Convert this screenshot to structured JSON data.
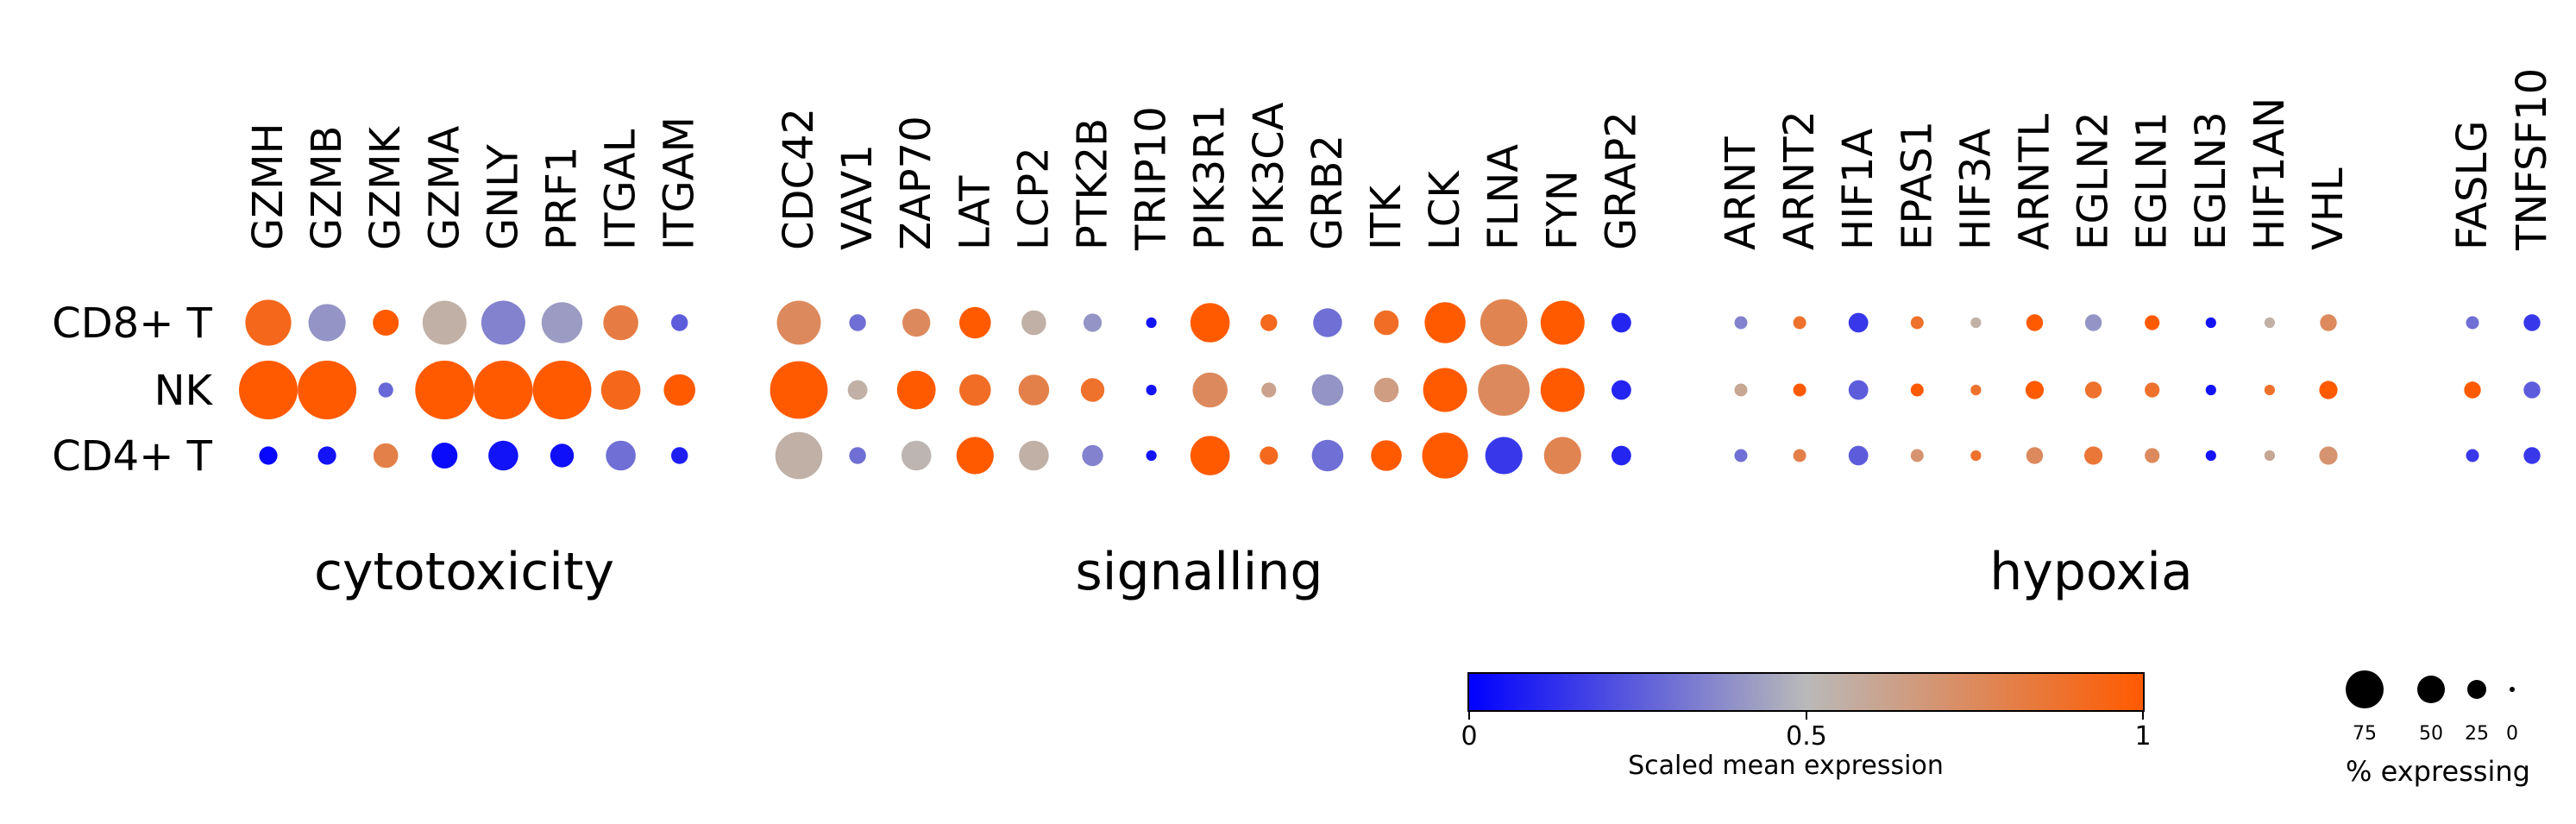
{
  "chart_data": {
    "type": "dotplot",
    "rows": [
      "CD8+ T",
      "NK",
      "CD4+ T"
    ],
    "groups": [
      {
        "label": "cytotoxicity",
        "genes": [
          {
            "name": "GZMH",
            "expr": [
              0.93,
              1.0,
              0.02
            ],
            "pct": [
              38,
              62,
              6
            ]
          },
          {
            "name": "GZMB",
            "expr": [
              0.4,
              1.0,
              0.05
            ],
            "pct": [
              25,
              62,
              6
            ]
          },
          {
            "name": "GZMK",
            "expr": [
              1.0,
              0.28,
              0.8
            ],
            "pct": [
              12,
              4,
              11
            ]
          },
          {
            "name": "GZMA",
            "expr": [
              0.55,
              1.0,
              0.03
            ],
            "pct": [
              35,
              62,
              12
            ]
          },
          {
            "name": "GNLY",
            "expr": [
              0.35,
              1.0,
              0.05
            ],
            "pct": [
              35,
              62,
              16
            ]
          },
          {
            "name": "PRF1",
            "expr": [
              0.42,
              1.0,
              0.04
            ],
            "pct": [
              30,
              62,
              10
            ]
          },
          {
            "name": "ITGAL",
            "expr": [
              0.82,
              0.93,
              0.3
            ],
            "pct": [
              22,
              28,
              16
            ]
          },
          {
            "name": "ITGAM",
            "expr": [
              0.25,
              1.0,
              0.08
            ],
            "pct": [
              5,
              18,
              5
            ]
          }
        ]
      },
      {
        "label": "signalling",
        "genes": [
          {
            "name": "CDC42",
            "expr": [
              0.75,
              1.0,
              0.55
            ],
            "pct": [
              35,
              60,
              40
            ]
          },
          {
            "name": "VAV1",
            "expr": [
              0.3,
              0.55,
              0.3
            ],
            "pct": [
              5,
              7,
              5
            ]
          },
          {
            "name": "ZAP70",
            "expr": [
              0.75,
              1.0,
              0.52
            ],
            "pct": [
              14,
              27,
              16
            ]
          },
          {
            "name": "LAT",
            "expr": [
              1.0,
              0.9,
              1.0
            ],
            "pct": [
              18,
              18,
              25
            ]
          },
          {
            "name": "LCP2",
            "expr": [
              0.55,
              0.8,
              0.55
            ],
            "pct": [
              11,
              17,
              16
            ]
          },
          {
            "name": "PTK2B",
            "expr": [
              0.4,
              0.88,
              0.35
            ],
            "pct": [
              6,
              10,
              8
            ]
          },
          {
            "name": "TRIP10",
            "expr": [
              0.05,
              0.05,
              0.05
            ],
            "pct": [
              2,
              2,
              2
            ]
          },
          {
            "name": "PIK3R1",
            "expr": [
              1.0,
              0.75,
              1.0
            ],
            "pct": [
              28,
              22,
              28
            ]
          },
          {
            "name": "PIK3CA",
            "expr": [
              0.92,
              0.62,
              0.92
            ],
            "pct": [
              5,
              4,
              6
            ]
          },
          {
            "name": "GRB2",
            "expr": [
              0.3,
              0.4,
              0.3
            ],
            "pct": [
              15,
              18,
              18
            ]
          },
          {
            "name": "ITK",
            "expr": [
              0.9,
              0.65,
              1.0
            ],
            "pct": [
              11,
              11,
              17
            ]
          },
          {
            "name": "LCK",
            "expr": [
              1.0,
              1.0,
              1.0
            ],
            "pct": [
              30,
              35,
              38
            ]
          },
          {
            "name": "FLNA",
            "expr": [
              0.78,
              0.75,
              0.15
            ],
            "pct": [
              40,
              48,
              25
            ]
          },
          {
            "name": "FYN",
            "expr": [
              1.0,
              1.0,
              0.78
            ],
            "pct": [
              35,
              35,
              25
            ]
          },
          {
            "name": "GRAP2",
            "expr": [
              0.1,
              0.1,
              0.1
            ],
            "pct": [
              7,
              7,
              7
            ]
          }
        ]
      },
      {
        "label": "hypoxia",
        "genes": [
          {
            "name": "ARNT",
            "expr": [
              0.35,
              0.6,
              0.3
            ],
            "pct": [
              3,
              3,
              3
            ]
          },
          {
            "name": "ARNT2",
            "expr": [
              0.88,
              1.0,
              0.8
            ],
            "pct": [
              3,
              3,
              3
            ]
          },
          {
            "name": "HIF1A",
            "expr": [
              0.15,
              0.25,
              0.25
            ],
            "pct": [
              7,
              7,
              7
            ]
          },
          {
            "name": "EPAS1",
            "expr": [
              0.88,
              1.0,
              0.7
            ],
            "pct": [
              3,
              3,
              3
            ]
          },
          {
            "name": "HIF3A",
            "expr": [
              0.55,
              0.88,
              0.88
            ],
            "pct": [
              2,
              2,
              2
            ]
          },
          {
            "name": "ARNTL",
            "expr": [
              1.0,
              1.0,
              0.75
            ],
            "pct": [
              5,
              6,
              5
            ]
          },
          {
            "name": "EGLN2",
            "expr": [
              0.4,
              0.88,
              0.85
            ],
            "pct": [
              5,
              5,
              6
            ]
          },
          {
            "name": "EGLN1",
            "expr": [
              1.0,
              0.88,
              0.75
            ],
            "pct": [
              4,
              4,
              4
            ]
          },
          {
            "name": "EGLN3",
            "expr": [
              0.05,
              0.05,
              0.05
            ],
            "pct": [
              2,
              2,
              2
            ]
          },
          {
            "name": "HIF1AN",
            "expr": [
              0.55,
              0.88,
              0.6
            ],
            "pct": [
              2,
              2,
              2
            ]
          },
          {
            "name": "VHL",
            "expr": [
              0.75,
              1.0,
              0.7
            ],
            "pct": [
              5,
              6,
              6
            ]
          }
        ]
      },
      {
        "label": "",
        "genes": [
          {
            "name": "FASLG",
            "expr": [
              0.3,
              1.0,
              0.15
            ],
            "pct": [
              3,
              5,
              3
            ]
          },
          {
            "name": "TNFSF10",
            "expr": [
              0.15,
              0.25,
              0.15
            ],
            "pct": [
              5,
              5,
              5
            ]
          }
        ]
      }
    ],
    "colorbar": {
      "label": "Scaled mean expression",
      "min": 0,
      "max": 1,
      "ticks": [
        "0",
        "0.5",
        "1"
      ],
      "colors": [
        "#0000ff",
        "#b9b9b9",
        "#ff5a00"
      ]
    },
    "size_legend": {
      "label": "% expressing",
      "values": [
        75,
        50,
        25,
        0
      ],
      "tick_labels": [
        "75",
        "50",
        "25",
        "0"
      ]
    }
  }
}
